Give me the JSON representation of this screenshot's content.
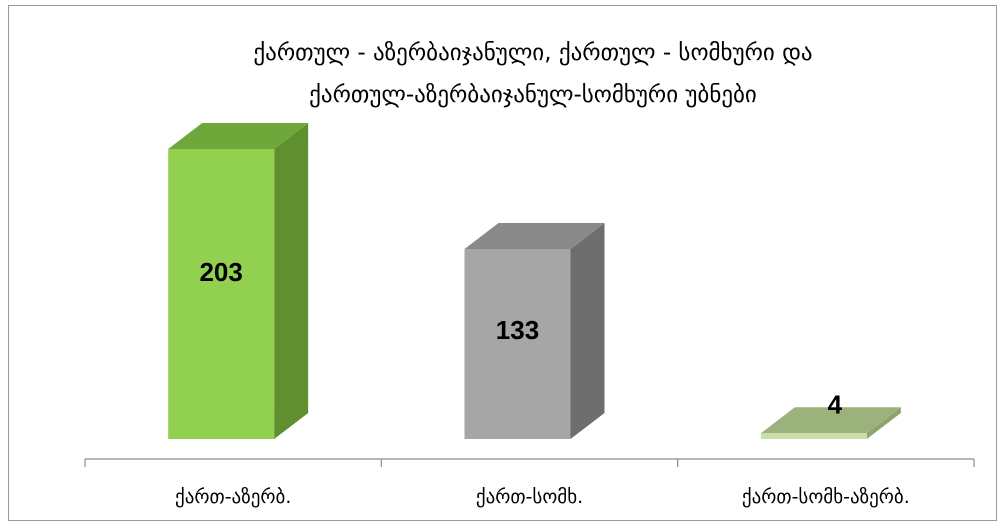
{
  "chart_data": {
    "type": "bar",
    "title": [
      "ქართულ - აზერბაიჯანული, ქართულ - სომხური და",
      "ქართულ-აზერბაიჯანულ-სომხური უბნები"
    ],
    "categories": [
      "ქართ-აზერბ.",
      "ქართ-სომხ.",
      "ქართ-სომხ-აზერბ."
    ],
    "values": [
      203,
      133,
      4
    ],
    "ylim": [
      0,
      210
    ],
    "grid": false,
    "legend": "none",
    "bar_colors": [
      {
        "front": "#92d050",
        "side": "#5f8f2e",
        "top": "#6fa83a"
      },
      {
        "front": "#a6a6a6",
        "side": "#6e6e6e",
        "top": "#8a8a8a"
      },
      {
        "front": "#c9dfa7",
        "side": "#8ea36f",
        "top": "#9cb27c"
      }
    ]
  }
}
